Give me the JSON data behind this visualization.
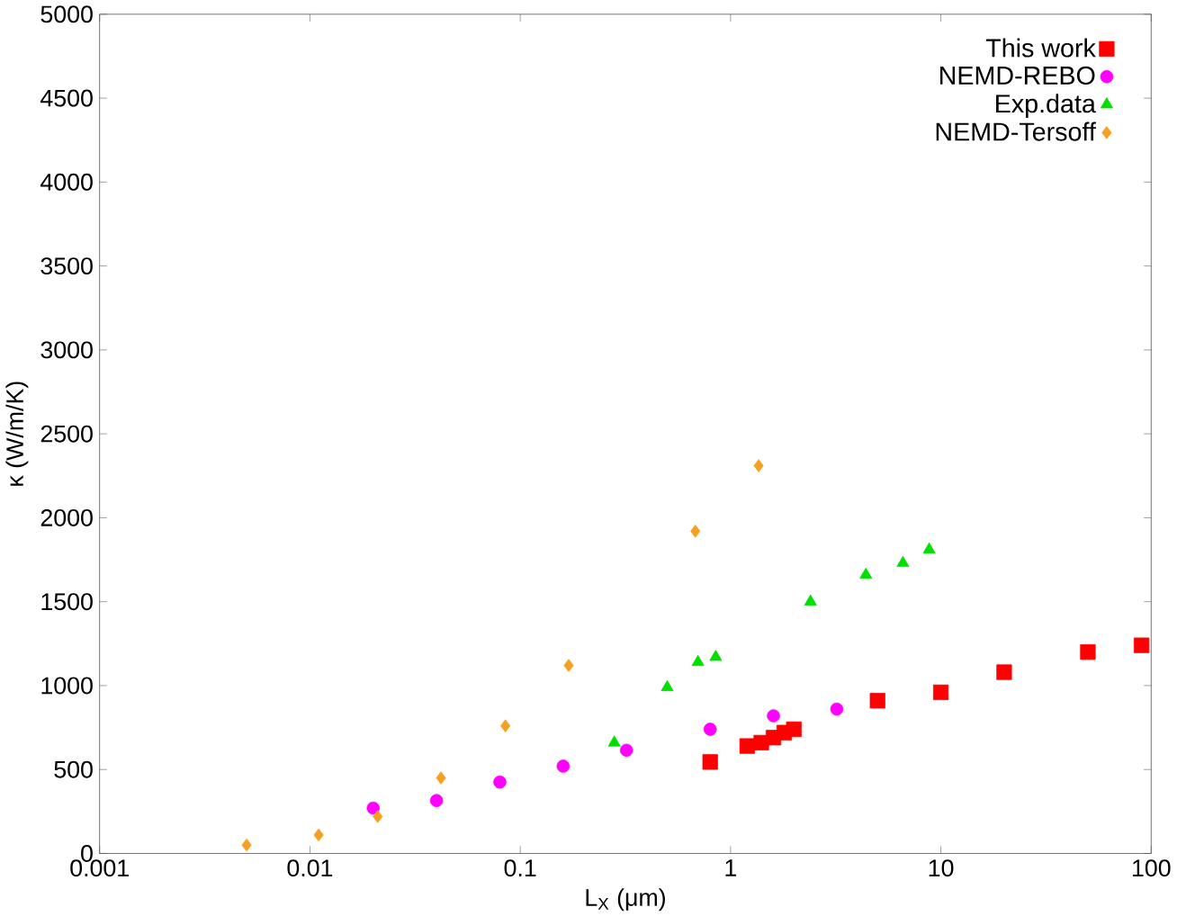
{
  "chart_data": {
    "type": "scatter",
    "xlabel": "L$_{X}$ (μm)",
    "ylabel": "κ (W/m/K)",
    "log": "x",
    "xlim": [
      0.001,
      100
    ],
    "xticks": [
      0.001,
      0.01,
      0.1,
      1,
      10,
      100
    ],
    "ylim": [
      0,
      5000
    ],
    "yticks": [
      0,
      500,
      1000,
      1500,
      2000,
      2500,
      3000,
      3500,
      4000,
      4500,
      5000
    ],
    "grid": false,
    "legend": "top right",
    "series": [
      {
        "name": "This work",
        "color": "#ff0000",
        "marker": "square",
        "x": [
          0.8,
          1.2,
          1.4,
          1.6,
          1.8,
          2.0,
          5,
          10,
          20,
          50,
          90
        ],
        "values": [
          545,
          640,
          660,
          690,
          720,
          740,
          910,
          960,
          1080,
          1200,
          1240
        ]
      },
      {
        "name": "NEMD-REBO",
        "color": "#ff00ff",
        "marker": "circle",
        "x": [
          0.02,
          0.04,
          0.08,
          0.16,
          0.32,
          0.8,
          1.6,
          3.2
        ],
        "values": [
          270,
          315,
          425,
          520,
          615,
          740,
          820,
          860
        ]
      },
      {
        "name": "Exp.data",
        "color": "#00e000",
        "marker": "triangle",
        "x": [
          0.28,
          0.5,
          0.7,
          0.85,
          2.4,
          4.4,
          6.6,
          8.8
        ],
        "values": [
          660,
          990,
          1140,
          1170,
          1500,
          1660,
          1730,
          1810
        ]
      },
      {
        "name": "NEMD-Tersoff",
        "color": "#f5a020",
        "marker": "diamond",
        "x": [
          0.005,
          0.011,
          0.021,
          0.042,
          0.085,
          0.17,
          0.68,
          1.36
        ],
        "values": [
          50,
          110,
          220,
          450,
          760,
          1120,
          1920,
          2310
        ]
      }
    ]
  }
}
